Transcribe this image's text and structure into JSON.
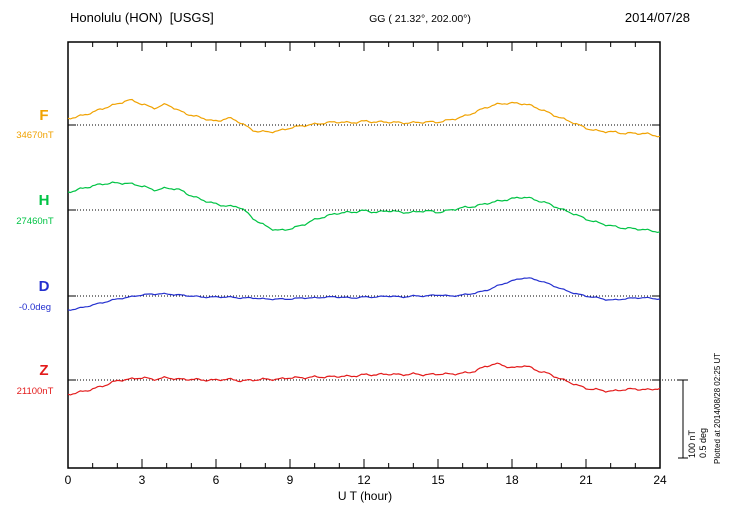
{
  "header": {
    "station": "Honolulu (HON)  [USGS]",
    "coords": "GG ( 21.32°, 202.00°)",
    "date": "2014/07/28"
  },
  "footer": {
    "xlabel": "U T (hour)"
  },
  "side": {
    "plotted_at": "Plotted at 2014/08/28 02:25 UT"
  },
  "scale_bar": {
    "nt": "100 nT",
    "deg": "0.5 deg"
  },
  "chart_data": {
    "type": "line",
    "title": "Honolulu (HON) [USGS] magnetogram 2014/07/28",
    "xlabel": "U T (hour)",
    "xlim": [
      0,
      24
    ],
    "x_ticks": [
      0,
      3,
      6,
      9,
      12,
      15,
      18,
      21,
      24
    ],
    "x_step": 0.5,
    "grid": "dotted-baselines",
    "legend_position": "left-labels",
    "series": [
      {
        "name": "F",
        "baseline_label": "34670nT",
        "unit": "nT",
        "color": "#f0a202",
        "values": [
          9,
          12,
          17,
          23,
          28,
          33,
          28,
          23,
          27,
          19,
          13,
          9,
          5,
          9,
          3,
          -7,
          -9,
          -8,
          -4,
          -1,
          1,
          3,
          4,
          3,
          5,
          4,
          4,
          3,
          3,
          4,
          4,
          7,
          11,
          17,
          24,
          28,
          29,
          28,
          23,
          16,
          9,
          3,
          -4,
          -8,
          -9,
          -11,
          -11,
          -12,
          -15
        ]
      },
      {
        "name": "H",
        "baseline_label": "27460nT",
        "unit": "nT",
        "color": "#00c344",
        "values": [
          24,
          28,
          32,
          35,
          36,
          35,
          32,
          27,
          29,
          27,
          19,
          13,
          8,
          5,
          3,
          -11,
          -21,
          -27,
          -25,
          -20,
          -13,
          -8,
          -4,
          -3,
          -1,
          -3,
          -1,
          -3,
          -3,
          -1,
          -3,
          0,
          3,
          5,
          9,
          12,
          15,
          17,
          13,
          8,
          1,
          -5,
          -12,
          -17,
          -21,
          -24,
          -25,
          -27,
          -29
        ]
      },
      {
        "name": "D",
        "baseline_label": "-0.0deg",
        "unit": "deg",
        "color": "#2430cf",
        "values": [
          -0.093,
          -0.08,
          -0.06,
          -0.04,
          -0.02,
          -0.007,
          0.007,
          0.013,
          0.013,
          0.007,
          0,
          -0.007,
          -0.007,
          -0.007,
          -0.013,
          -0.013,
          -0.02,
          -0.02,
          -0.02,
          -0.013,
          -0.013,
          -0.007,
          -0.007,
          -0.013,
          -0.007,
          -0.007,
          0,
          -0.007,
          0,
          0,
          0.007,
          0,
          0.007,
          0.02,
          0.04,
          0.073,
          0.1,
          0.12,
          0.107,
          0.08,
          0.047,
          0.02,
          0,
          -0.013,
          -0.027,
          -0.02,
          -0.013,
          -0.013,
          -0.02
        ]
      },
      {
        "name": "Z",
        "baseline_label": "21100nT",
        "unit": "nT",
        "color": "#e31b1b",
        "values": [
          -19,
          -16,
          -12,
          -7,
          -1,
          1,
          3,
          1,
          3,
          1,
          1,
          0,
          0,
          1,
          -1,
          0,
          1,
          1,
          3,
          3,
          4,
          4,
          5,
          5,
          7,
          7,
          8,
          7,
          8,
          7,
          8,
          8,
          9,
          12,
          19,
          21,
          16,
          19,
          13,
          8,
          1,
          -5,
          -11,
          -13,
          -15,
          -13,
          -12,
          -13,
          -11
        ]
      }
    ]
  }
}
